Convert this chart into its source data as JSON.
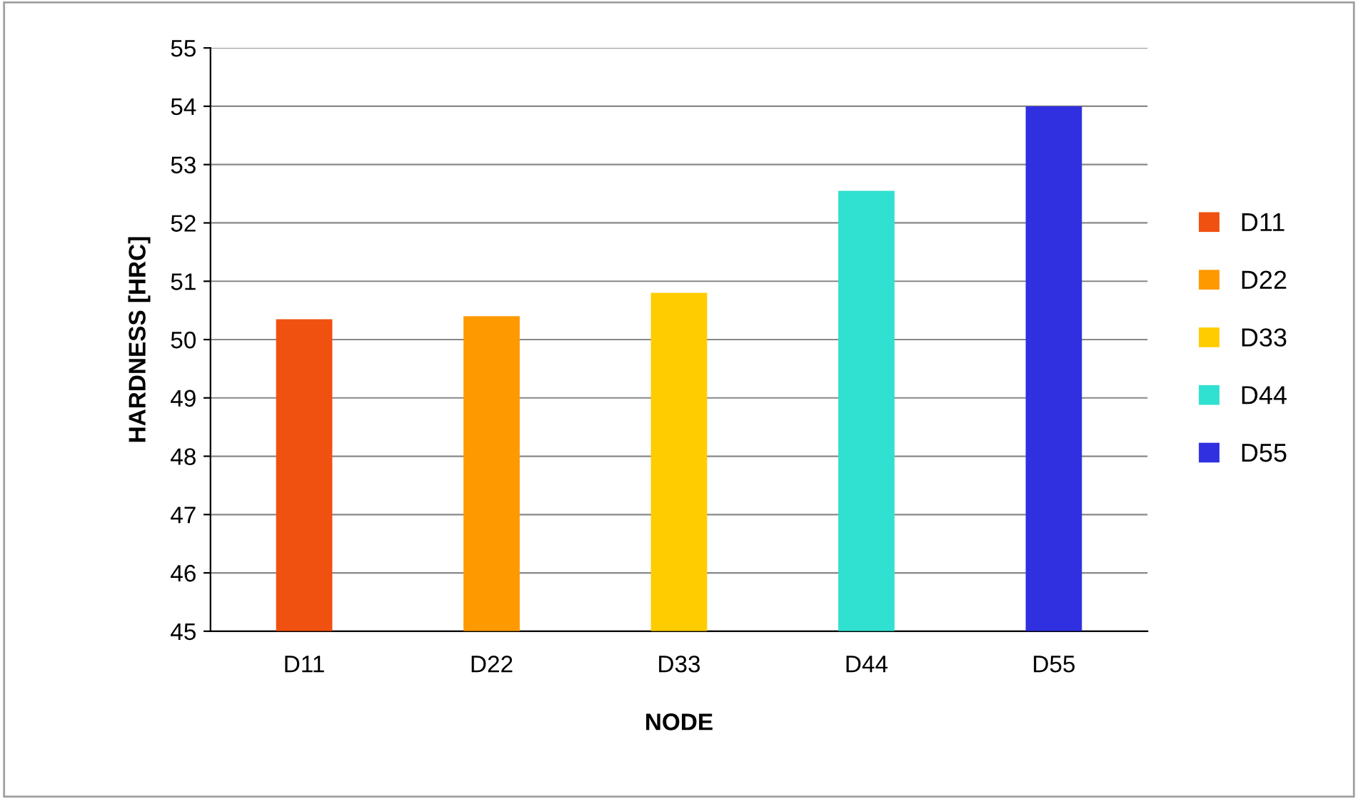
{
  "chart_data": {
    "type": "bar",
    "xlabel": "NODE",
    "ylabel": "HARDNESS [HRC]",
    "categories": [
      "D11",
      "D22",
      "D33",
      "D44",
      "D55"
    ],
    "series": [
      {
        "name": "D11",
        "color": "#f05010",
        "values": [
          50.35,
          null,
          null,
          null,
          null
        ]
      },
      {
        "name": "D22",
        "color": "#ff9900",
        "values": [
          null,
          50.4,
          null,
          null,
          null
        ]
      },
      {
        "name": "D33",
        "color": "#ffcc00",
        "values": [
          null,
          null,
          50.8,
          null,
          null
        ]
      },
      {
        "name": "D44",
        "color": "#30e0d0",
        "values": [
          null,
          null,
          null,
          52.55,
          null
        ]
      },
      {
        "name": "D55",
        "color": "#3030e0",
        "values": [
          null,
          null,
          null,
          null,
          54.0
        ]
      }
    ],
    "ylim": [
      45,
      55
    ],
    "yticks": [
      45,
      46,
      47,
      48,
      49,
      50,
      51,
      52,
      53,
      54,
      55
    ],
    "grid": "y",
    "legend": "right"
  }
}
